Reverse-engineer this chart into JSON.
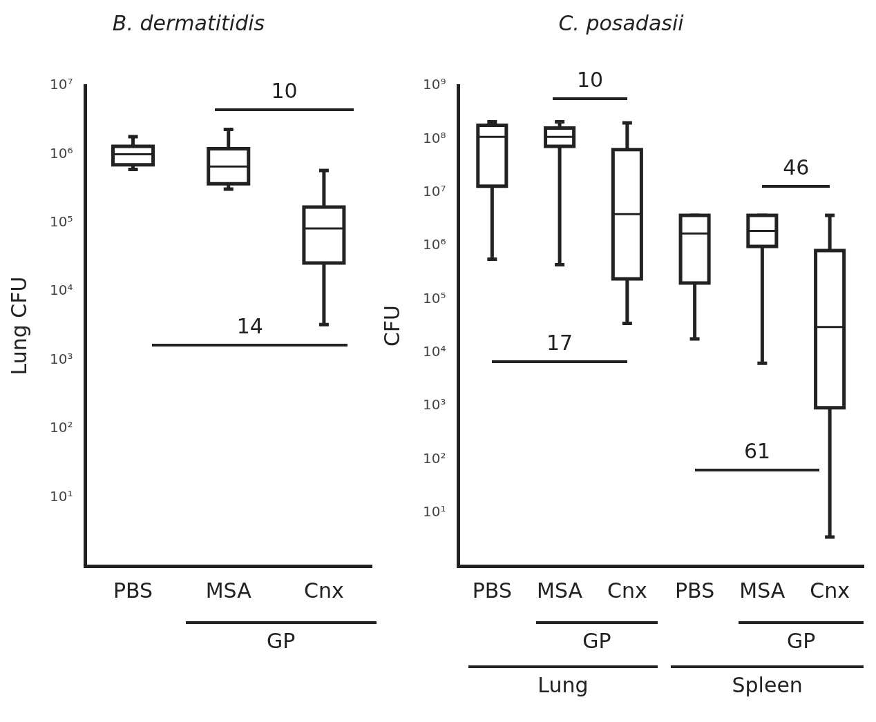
{
  "chart_data": [
    {
      "type": "box",
      "title": "B. dermatitidis",
      "ylabel": "Lung CFU",
      "log": true,
      "categories": [
        "PBS",
        "MSA",
        "Cnx"
      ],
      "boxes": [
        {
          "low": 600000,
          "q1": 700000,
          "median": 1000000,
          "q3": 1300000,
          "high": 1800000
        },
        {
          "low": 310000,
          "q1": 370000,
          "median": 660000,
          "q3": 1200000,
          "high": 2300000
        },
        {
          "low": 3300,
          "q1": 26000,
          "median": 83000,
          "q3": 170000,
          "high": 580000
        }
      ],
      "ylim": [
        1,
        10000000
      ],
      "yticks": [
        {
          "value": 10,
          "label": "10¹"
        },
        {
          "value": 100,
          "label": "10²"
        },
        {
          "value": 1000,
          "label": "10³"
        },
        {
          "value": 10000,
          "label": "10⁴"
        },
        {
          "value": 100000,
          "label": "10⁵"
        },
        {
          "value": 1000000,
          "label": "10⁶"
        },
        {
          "value": 10000000,
          "label": "10⁷"
        }
      ],
      "annotations": [
        "10",
        "14",
        "GP"
      ]
    },
    {
      "type": "box",
      "title": "C. posadasii",
      "ylabel": "CFU",
      "log": true,
      "categories": [
        "PBS",
        "MSA",
        "Cnx",
        "PBS",
        "MSA",
        "Cnx"
      ],
      "boxes": [
        {
          "low": 560000,
          "q1": 13000000,
          "median": 110000000,
          "q3": 180000000,
          "high": 210000000
        },
        {
          "low": 440000,
          "q1": 73000000,
          "median": 110000000,
          "q3": 160000000,
          "high": 210000000
        },
        {
          "low": 35000,
          "q1": 240000,
          "median": 3900000,
          "q3": 63000000,
          "high": 200000000
        },
        {
          "low": 18000,
          "q1": 200000,
          "median": 1700000,
          "q3": 3700000,
          "high": 3700000
        },
        {
          "low": 6300,
          "q1": 970000,
          "median": 1900000,
          "q3": 3700000,
          "high": 3700000
        },
        {
          "low": 3.5,
          "q1": 920,
          "median": 30000,
          "q3": 810000,
          "high": 3700000
        }
      ],
      "ylim": [
        1,
        1000000000
      ],
      "yticks": [
        {
          "value": 10,
          "label": "10¹"
        },
        {
          "value": 100,
          "label": "10²"
        },
        {
          "value": 1000,
          "label": "10³"
        },
        {
          "value": 10000,
          "label": "10⁴"
        },
        {
          "value": 100000,
          "label": "10⁵"
        },
        {
          "value": 1000000,
          "label": "10⁶"
        },
        {
          "value": 10000000,
          "label": "10⁷"
        },
        {
          "value": 100000000,
          "label": "10⁸"
        },
        {
          "value": 1000000000,
          "label": "10⁹"
        }
      ],
      "annotations": [
        "10",
        "17",
        "46",
        "61",
        "GP",
        "GP",
        "Lung",
        "Spleen"
      ]
    }
  ]
}
